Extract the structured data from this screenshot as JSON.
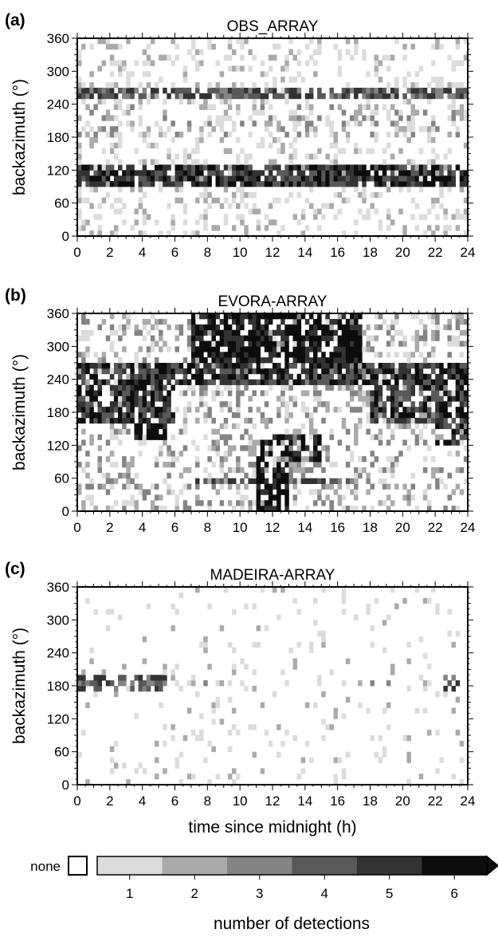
{
  "chart_data": [
    {
      "type": "heatmap",
      "panel_label": "(a)",
      "title": "OBS_ARRAY",
      "xlabel": "",
      "ylabel": "backazimuth (°)",
      "xlim": [
        0,
        24
      ],
      "ylim": [
        0,
        360
      ],
      "x_ticks": [
        "0",
        "2",
        "4",
        "6",
        "8",
        "10",
        "12",
        "14",
        "16",
        "18",
        "20",
        "22",
        "24"
      ],
      "y_ticks": [
        "0",
        "60",
        "120",
        "180",
        "240",
        "300",
        "360"
      ],
      "grid": false,
      "bin_hours": 0.25,
      "bin_degrees": 10,
      "bands": [
        {
          "baz": [
            250,
            265
          ],
          "hours": [
            0,
            24
          ],
          "level": 4,
          "density": 0.8
        },
        {
          "baz": [
            90,
            125
          ],
          "hours": [
            0,
            24
          ],
          "level": 5,
          "density": 0.85
        },
        {
          "baz": [
            180,
            240
          ],
          "hours": [
            0,
            24
          ],
          "level": 2,
          "density": 0.18
        },
        {
          "baz": [
            0,
            360
          ],
          "hours": [
            0,
            24
          ],
          "level": 1,
          "density": 0.22
        }
      ]
    },
    {
      "type": "heatmap",
      "panel_label": "(b)",
      "title": "EVORA-ARRAY",
      "xlabel": "",
      "ylabel": "backazimuth (°)",
      "xlim": [
        0,
        24
      ],
      "ylim": [
        0,
        360
      ],
      "x_ticks": [
        "0",
        "2",
        "4",
        "6",
        "8",
        "10",
        "12",
        "14",
        "16",
        "18",
        "20",
        "22",
        "24"
      ],
      "y_ticks": [
        "0",
        "60",
        "120",
        "180",
        "240",
        "300",
        "360"
      ],
      "grid": false,
      "bin_hours": 0.25,
      "bin_degrees": 10,
      "bands": [
        {
          "baz": [
            270,
            360
          ],
          "hours": [
            7,
            17.5
          ],
          "level": 6,
          "density": 0.8
        },
        {
          "baz": [
            230,
            270
          ],
          "hours": [
            0,
            24
          ],
          "level": 5,
          "density": 0.75
        },
        {
          "baz": [
            160,
            230
          ],
          "hours": [
            0,
            6
          ],
          "level": 5,
          "density": 0.7
        },
        {
          "baz": [
            160,
            230
          ],
          "hours": [
            18,
            24
          ],
          "level": 5,
          "density": 0.75
        },
        {
          "baz": [
            130,
            160
          ],
          "hours": [
            3.5,
            5.5
          ],
          "level": 6,
          "density": 0.8
        },
        {
          "baz": [
            90,
            140
          ],
          "hours": [
            11,
            15
          ],
          "level": 6,
          "density": 0.6
        },
        {
          "baz": [
            0,
            90
          ],
          "hours": [
            11,
            13
          ],
          "level": 6,
          "density": 0.7
        },
        {
          "baz": [
            50,
            60
          ],
          "hours": [
            7,
            17
          ],
          "level": 4,
          "density": 0.7
        },
        {
          "baz": [
            120,
            180
          ],
          "hours": [
            22,
            24
          ],
          "level": 5,
          "density": 0.5
        },
        {
          "baz": [
            0,
            360
          ],
          "hours": [
            0,
            24
          ],
          "level": 2,
          "density": 0.3
        }
      ]
    },
    {
      "type": "heatmap",
      "panel_label": "(c)",
      "title": "MADEIRA-ARRAY",
      "xlabel": "time since midnight (h)",
      "ylabel": "backazimuth (°)",
      "xlim": [
        0,
        24
      ],
      "ylim": [
        0,
        360
      ],
      "x_ticks": [
        "0",
        "2",
        "4",
        "6",
        "8",
        "10",
        "12",
        "14",
        "16",
        "18",
        "20",
        "22",
        "24"
      ],
      "y_ticks": [
        "0",
        "60",
        "120",
        "180",
        "240",
        "300",
        "360"
      ],
      "grid": false,
      "bin_hours": 0.25,
      "bin_degrees": 10,
      "bands": [
        {
          "baz": [
            175,
            200
          ],
          "hours": [
            0,
            5.5
          ],
          "level": 4,
          "density": 0.6
        },
        {
          "baz": [
            170,
            200
          ],
          "hours": [
            22.5,
            23.5
          ],
          "level": 4,
          "density": 0.6
        },
        {
          "baz": [
            180,
            190
          ],
          "hours": [
            5.5,
            22
          ],
          "level": 2,
          "density": 0.2
        },
        {
          "baz": [
            0,
            360
          ],
          "hours": [
            0,
            24
          ],
          "level": 1,
          "density": 0.07
        }
      ]
    }
  ],
  "colorbar": {
    "none_label": "none",
    "ticks": [
      "1",
      "2",
      "3",
      "4",
      "5",
      "6"
    ],
    "label": "number of detections",
    "colors": [
      "#dcdcdc",
      "#aaaaaa",
      "#848484",
      "#595959",
      "#333333",
      "#0d0d0d"
    ],
    "none_color": "#ffffff"
  }
}
